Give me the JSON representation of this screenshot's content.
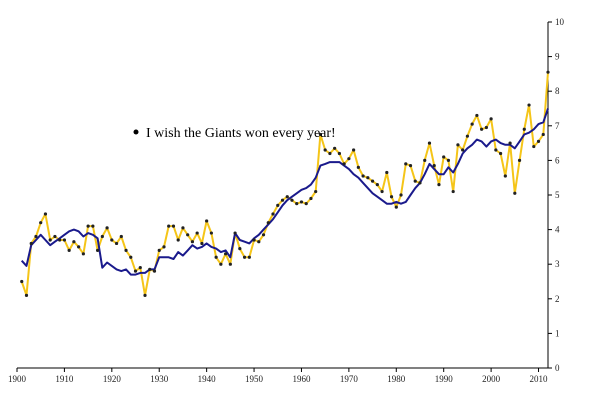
{
  "chart_data": {
    "type": "line",
    "title": "",
    "xlabel": "",
    "ylabel": "",
    "xlim": [
      1900,
      2012
    ],
    "ylim": [
      0,
      10
    ],
    "grid": false,
    "x_ticks": [
      1900,
      1910,
      1920,
      1930,
      1940,
      1950,
      1960,
      1970,
      1980,
      1990,
      2000,
      2010
    ],
    "x_tick_labels": [
      "1900",
      "1910",
      "1920",
      "1930",
      "1940",
      "1950",
      "1960",
      "1970",
      "1980",
      "1990",
      "2000",
      "2010"
    ],
    "y_ticks": [
      0,
      1,
      2,
      3,
      4,
      5,
      6,
      7,
      8,
      9,
      10
    ],
    "y_tick_labels": [
      "0",
      "1",
      "2",
      "3",
      "4",
      "5",
      "6",
      "7",
      "8",
      "9",
      "10"
    ],
    "y_axis_position": "right",
    "annotation": "I wish the Giants won every year!",
    "series": [
      {
        "color": "#f5c518",
        "markers": true,
        "x": [
          1901,
          1902,
          1903,
          1904,
          1905,
          1906,
          1907,
          1908,
          1909,
          1910,
          1911,
          1912,
          1913,
          1914,
          1915,
          1916,
          1917,
          1918,
          1919,
          1920,
          1921,
          1922,
          1923,
          1924,
          1925,
          1926,
          1927,
          1928,
          1929,
          1930,
          1931,
          1932,
          1933,
          1934,
          1935,
          1936,
          1937,
          1938,
          1939,
          1940,
          1941,
          1942,
          1943,
          1944,
          1945,
          1946,
          1947,
          1948,
          1949,
          1950,
          1951,
          1952,
          1953,
          1954,
          1955,
          1956,
          1957,
          1958,
          1959,
          1960,
          1961,
          1962,
          1963,
          1964,
          1965,
          1966,
          1967,
          1968,
          1969,
          1970,
          1971,
          1972,
          1973,
          1974,
          1975,
          1976,
          1977,
          1978,
          1979,
          1980,
          1981,
          1982,
          1983,
          1984,
          1985,
          1986,
          1987,
          1988,
          1989,
          1990,
          1991,
          1992,
          1993,
          1994,
          1995,
          1996,
          1997,
          1998,
          1999,
          2000,
          2001,
          2002,
          2003,
          2004,
          2005,
          2006,
          2007,
          2008,
          2009,
          2010,
          2011,
          2012
        ],
        "values": [
          2.5,
          2.1,
          3.6,
          3.8,
          4.2,
          4.45,
          3.7,
          3.8,
          3.7,
          3.7,
          3.4,
          3.65,
          3.5,
          3.3,
          4.1,
          4.1,
          3.4,
          3.8,
          4.05,
          3.7,
          3.6,
          3.8,
          3.4,
          3.2,
          2.8,
          2.9,
          2.1,
          2.85,
          2.8,
          3.4,
          3.5,
          4.1,
          4.1,
          3.7,
          4.05,
          3.85,
          3.65,
          3.9,
          3.6,
          4.25,
          3.9,
          3.2,
          3.0,
          3.3,
          3.0,
          3.9,
          3.45,
          3.2,
          3.2,
          3.7,
          3.65,
          3.85,
          4.2,
          4.45,
          4.7,
          4.85,
          4.95,
          4.85,
          4.75,
          4.8,
          4.75,
          4.9,
          5.1,
          6.75,
          6.3,
          6.2,
          6.35,
          6.2,
          5.9,
          6.05,
          6.3,
          5.8,
          5.55,
          5.5,
          5.4,
          5.3,
          5.1,
          5.65,
          4.95,
          4.65,
          5.0,
          5.9,
          5.85,
          5.4,
          5.35,
          6.0,
          6.5,
          5.85,
          5.3,
          6.1,
          6.0,
          5.1,
          6.45,
          6.3,
          6.7,
          7.05,
          7.3,
          6.9,
          6.95,
          7.2,
          6.3,
          6.2,
          5.55,
          6.5,
          5.05,
          6.0,
          6.9,
          7.6,
          6.4,
          6.55,
          6.75,
          8.55
        ]
      },
      {
        "color": "#1a1a8c",
        "markers": false,
        "x": [
          1901,
          1902,
          1903,
          1904,
          1905,
          1906,
          1907,
          1908,
          1909,
          1910,
          1911,
          1912,
          1913,
          1914,
          1915,
          1916,
          1917,
          1918,
          1919,
          1920,
          1921,
          1922,
          1923,
          1924,
          1925,
          1926,
          1927,
          1928,
          1929,
          1930,
          1931,
          1932,
          1933,
          1934,
          1935,
          1936,
          1937,
          1938,
          1939,
          1940,
          1941,
          1942,
          1943,
          1944,
          1945,
          1946,
          1947,
          1948,
          1949,
          1950,
          1951,
          1952,
          1953,
          1954,
          1955,
          1956,
          1957,
          1958,
          1959,
          1960,
          1961,
          1962,
          1963,
          1964,
          1965,
          1966,
          1967,
          1968,
          1969,
          1970,
          1971,
          1972,
          1973,
          1974,
          1975,
          1976,
          1977,
          1978,
          1979,
          1980,
          1981,
          1982,
          1983,
          1984,
          1985,
          1986,
          1987,
          1988,
          1989,
          1990,
          1991,
          1992,
          1993,
          1994,
          1995,
          1996,
          1997,
          1998,
          1999,
          2000,
          2001,
          2002,
          2003,
          2004,
          2005,
          2006,
          2007,
          2008,
          2009,
          2010,
          2011,
          2012
        ],
        "values": [
          3.1,
          2.95,
          3.55,
          3.7,
          3.85,
          3.7,
          3.55,
          3.65,
          3.75,
          3.85,
          3.95,
          4.0,
          3.95,
          3.8,
          3.9,
          3.85,
          3.75,
          2.9,
          3.05,
          2.95,
          2.85,
          2.8,
          2.85,
          2.7,
          2.7,
          2.75,
          2.75,
          2.85,
          2.85,
          3.2,
          3.2,
          3.2,
          3.15,
          3.35,
          3.25,
          3.4,
          3.55,
          3.45,
          3.5,
          3.6,
          3.5,
          3.45,
          3.35,
          3.4,
          3.2,
          3.9,
          3.7,
          3.65,
          3.6,
          3.75,
          3.85,
          4.0,
          4.15,
          4.3,
          4.5,
          4.7,
          4.85,
          4.95,
          5.05,
          5.15,
          5.2,
          5.3,
          5.5,
          5.85,
          5.9,
          5.95,
          5.95,
          5.95,
          5.85,
          5.75,
          5.6,
          5.5,
          5.35,
          5.2,
          5.05,
          4.95,
          4.85,
          4.75,
          4.75,
          4.8,
          4.75,
          4.8,
          5.0,
          5.2,
          5.35,
          5.6,
          5.9,
          5.75,
          5.6,
          5.6,
          5.8,
          5.65,
          5.9,
          6.2,
          6.35,
          6.45,
          6.6,
          6.55,
          6.4,
          6.55,
          6.6,
          6.5,
          6.45,
          6.45,
          6.35,
          6.55,
          6.75,
          6.8,
          6.9,
          7.05,
          7.1,
          7.5
        ]
      }
    ]
  }
}
